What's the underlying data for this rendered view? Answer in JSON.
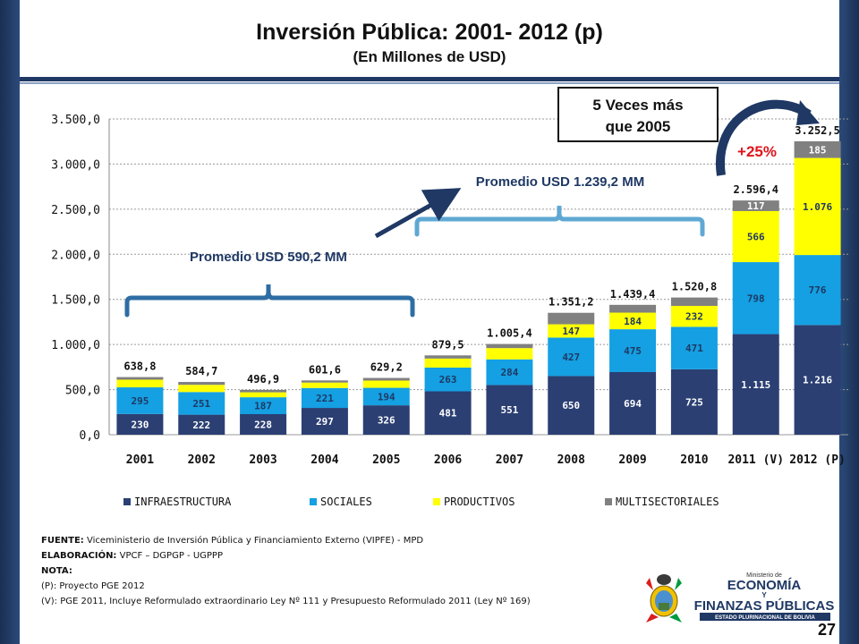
{
  "slide": {
    "title": "Inversión Pública: 2001- 2012 (p)",
    "subtitle": "(En Millones de USD)",
    "page_number": "27"
  },
  "annotations": {
    "box_line1": "5 Veces más",
    "box_line2": "que 2005",
    "growth": "+25%",
    "avg1": "Promedio USD 590,2 MM",
    "avg2": "Promedio USD 1.239,2 MM"
  },
  "footer": {
    "fuente_label": "FUENTE:",
    "fuente": "Viceministerio de Inversión Pública y Financiamiento Externo (VIPFE) - MPD",
    "elaboracion_label": "ELABORACIÓN:",
    "elaboracion": "VPCF – DGPGP - UGPPP",
    "nota_label": "NOTA:",
    "nota_p": "(P): Proyecto PGE 2012",
    "nota_v": "(V): PGE 2011, Incluye Reformulado extraordinario Ley Nº 111 y Presupuesto Reformulado 2011 (Ley Nº 169)"
  },
  "logo": {
    "line1": "Ministerio de",
    "line2": "ECONOMÍA",
    "line3": "Y",
    "line4": "FINANZAS PÚBLICAS",
    "line5": "ESTADO PLURINACIONAL DE BOLIVIA"
  },
  "colors": {
    "infra": "#2b3f73",
    "sociales": "#14a0e2",
    "productivos": "#ffff00",
    "multi": "#808080",
    "dark_blue": "#1f3864",
    "bracket": "#2e6da4",
    "bracket2": "#5fa8d3",
    "red": "#e0141b"
  },
  "chart_data": {
    "type": "bar",
    "stacked": true,
    "categories": [
      "2001",
      "2002",
      "2003",
      "2004",
      "2005",
      "2006",
      "2007",
      "2008",
      "2009",
      "2010",
      "2011 (V)",
      "2012 (P)"
    ],
    "series": [
      {
        "name": "INFRAESTRUCTURA",
        "values": [
          230,
          222,
          228,
          297,
          326,
          481,
          551,
          650,
          694,
          725,
          1115,
          1216
        ],
        "labels": [
          "230",
          "222",
          "228",
          "297",
          "326",
          "481",
          "551",
          "650",
          "694",
          "725",
          "1.115",
          "1.216"
        ]
      },
      {
        "name": "SOCIALES",
        "values": [
          295,
          251,
          187,
          221,
          194,
          263,
          284,
          427,
          475,
          471,
          798,
          776
        ],
        "labels": [
          "295",
          "251",
          "187",
          "221",
          "194",
          "263",
          "284",
          "427",
          "475",
          "471",
          "798",
          "776"
        ]
      },
      {
        "name": "PRODUCTIVOS",
        "values": [
          85,
          80,
          55,
          60,
          80,
          100,
          125,
          147,
          184,
          232,
          566,
          1076
        ],
        "labels": [
          "",
          "",
          "",
          "",
          "",
          "",
          "",
          "147",
          "184",
          "232",
          "566",
          "1.076"
        ]
      },
      {
        "name": "MULTISECTORIALES",
        "values": [
          28.8,
          31.7,
          26.9,
          23.6,
          29.2,
          35.5,
          45.4,
          127.2,
          86.4,
          92.8,
          117.4,
          184.5
        ],
        "labels": [
          "",
          "",
          "",
          "",
          "",
          "",
          "",
          "",
          "",
          "",
          "117",
          "185"
        ]
      }
    ],
    "totals": [
      "638,8",
      "584,7",
      "496,9",
      "601,6",
      "629,2",
      "879,5",
      "1.005,4",
      "1.351,2",
      "1.439,4",
      "1.520,8",
      "2.596,4",
      "3.252,5"
    ],
    "ylim": [
      0,
      3500
    ],
    "yticks": [
      "0,0",
      "500,0",
      "1.000,0",
      "1.500,0",
      "2.000,0",
      "2.500,0",
      "3.000,0",
      "3.500,0"
    ],
    "grid": true,
    "legend_position": "bottom"
  }
}
